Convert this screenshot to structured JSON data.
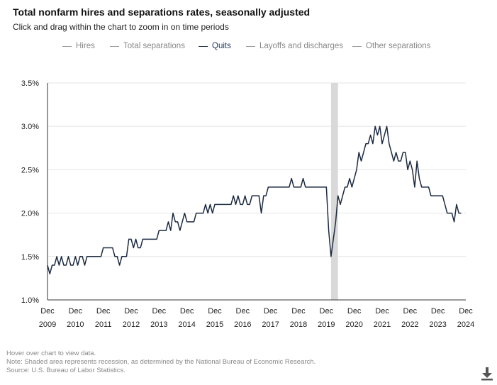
{
  "header": {
    "title": "Total nonfarm hires and separations rates, seasonally adjusted",
    "subtitle": "Click and drag within the chart to zoom in on time periods"
  },
  "legend": [
    {
      "label": "Hires",
      "active": false
    },
    {
      "label": "Total separations",
      "active": false
    },
    {
      "label": "Quits",
      "active": true
    },
    {
      "label": "Layoffs and discharges",
      "active": false
    },
    {
      "label": "Other separations",
      "active": false
    }
  ],
  "footer": {
    "hover_note": "Hover over chart to view data.",
    "recession_note": "Note: Shaded area represents recession, as determined by the National Bureau of Economic Research.",
    "source": "Source: U.S. Bureau of Labor Statistics."
  },
  "colors": {
    "series": "#1c2a40",
    "recession": "#d9d9d9",
    "grid": "#e6e6e6",
    "axis": "#333333",
    "legend_inactive": "#999999"
  },
  "icons": {
    "download": "download-icon"
  },
  "chart_data": {
    "type": "line",
    "title": "Total nonfarm hires and separations rates, seasonally adjusted",
    "series_name": "Quits",
    "ylabel": "",
    "xlabel": "",
    "ylim": [
      1.0,
      3.5
    ],
    "y_ticks": [
      1.0,
      1.5,
      2.0,
      2.5,
      3.0,
      3.5
    ],
    "y_tick_labels": [
      "1.0%",
      "1.5%",
      "2.0%",
      "2.5%",
      "3.0%",
      "3.5%"
    ],
    "x_start": "Dec 2009",
    "x_ticks": [
      {
        "month": "Dec",
        "year": "2009"
      },
      {
        "month": "Dec",
        "year": "2010"
      },
      {
        "month": "Dec",
        "year": "2011"
      },
      {
        "month": "Dec",
        "year": "2012"
      },
      {
        "month": "Dec",
        "year": "2013"
      },
      {
        "month": "Dec",
        "year": "2014"
      },
      {
        "month": "Dec",
        "year": "2015"
      },
      {
        "month": "Dec",
        "year": "2016"
      },
      {
        "month": "Dec",
        "year": "2017"
      },
      {
        "month": "Dec",
        "year": "2018"
      },
      {
        "month": "Dec",
        "year": "2019"
      },
      {
        "month": "Dec",
        "year": "2020"
      },
      {
        "month": "Dec",
        "year": "2021"
      },
      {
        "month": "Dec",
        "year": "2022"
      },
      {
        "month": "Dec",
        "year": "2023"
      },
      {
        "month": "Dec",
        "year": "2024"
      }
    ],
    "recession": {
      "start_month_index": 2,
      "end_month_index": 4,
      "start_year": 2020,
      "label": "2020 recession (Feb–Apr 2020)"
    },
    "monthly_start_year": 2009,
    "monthly_start_month": 12,
    "values": [
      1.4,
      1.3,
      1.4,
      1.4,
      1.5,
      1.4,
      1.5,
      1.4,
      1.4,
      1.5,
      1.4,
      1.4,
      1.5,
      1.4,
      1.5,
      1.5,
      1.4,
      1.5,
      1.5,
      1.5,
      1.5,
      1.5,
      1.5,
      1.5,
      1.6,
      1.6,
      1.6,
      1.6,
      1.6,
      1.5,
      1.5,
      1.4,
      1.5,
      1.5,
      1.5,
      1.7,
      1.7,
      1.6,
      1.7,
      1.6,
      1.6,
      1.7,
      1.7,
      1.7,
      1.7,
      1.7,
      1.7,
      1.7,
      1.8,
      1.8,
      1.8,
      1.8,
      1.9,
      1.8,
      2.0,
      1.9,
      1.9,
      1.8,
      1.9,
      2.0,
      1.9,
      1.9,
      1.9,
      1.9,
      2.0,
      2.0,
      2.0,
      2.0,
      2.1,
      2.0,
      2.1,
      2.0,
      2.1,
      2.1,
      2.1,
      2.1,
      2.1,
      2.1,
      2.1,
      2.1,
      2.2,
      2.1,
      2.2,
      2.1,
      2.1,
      2.2,
      2.1,
      2.1,
      2.2,
      2.2,
      2.2,
      2.2,
      2.0,
      2.2,
      2.2,
      2.3,
      2.3,
      2.3,
      2.3,
      2.3,
      2.3,
      2.3,
      2.3,
      2.3,
      2.3,
      2.4,
      2.3,
      2.3,
      2.3,
      2.3,
      2.4,
      2.3,
      2.3,
      2.3,
      2.3,
      2.3,
      2.3,
      2.3,
      2.3,
      2.3,
      2.3,
      1.8,
      1.5,
      1.7,
      1.9,
      2.2,
      2.1,
      2.2,
      2.3,
      2.3,
      2.4,
      2.3,
      2.4,
      2.5,
      2.7,
      2.6,
      2.7,
      2.8,
      2.8,
      2.9,
      2.8,
      3.0,
      2.9,
      3.0,
      2.8,
      2.9,
      3.0,
      2.8,
      2.7,
      2.6,
      2.7,
      2.6,
      2.6,
      2.7,
      2.7,
      2.5,
      2.6,
      2.5,
      2.3,
      2.6,
      2.4,
      2.3,
      2.3,
      2.3,
      2.3,
      2.2,
      2.2,
      2.2,
      2.2,
      2.2,
      2.2,
      2.1,
      2.0,
      2.0,
      2.0,
      1.9,
      2.1,
      2.0,
      2.0
    ]
  }
}
